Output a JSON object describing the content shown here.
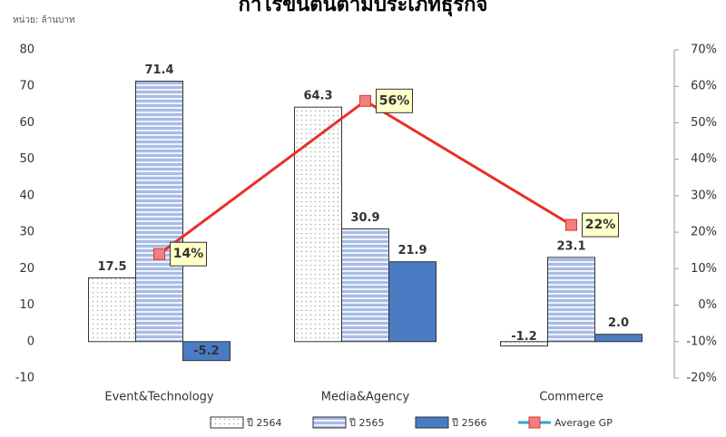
{
  "chart_data": {
    "type": "bar",
    "title": "กำไรขั้นต้นตามประเภทธุรกิจ",
    "unit_label": "หน่วย: ล้านบาท",
    "categories": [
      "Event&Technology",
      "Media&Agency",
      "Commerce"
    ],
    "series": [
      {
        "name": "ปี 2564",
        "color": "#ffffff",
        "pattern": "dots",
        "values": [
          17.5,
          64.3,
          -1.2
        ]
      },
      {
        "name": "ปี 2565",
        "color": "#a7bce6",
        "pattern": "stripes",
        "values": [
          71.4,
          30.9,
          23.1
        ]
      },
      {
        "name": "ปี 2566",
        "color": "#4a7cc4",
        "pattern": "solid",
        "values": [
          -5.2,
          21.9,
          2.0
        ],
        "value_labels": [
          "-5.2",
          "21.9",
          "2.0"
        ]
      },
      {
        "name": "Average GP",
        "type": "line",
        "axis": "y2",
        "color": "#e8302a",
        "legend_color": "#2aa7d8",
        "values": [
          14,
          56,
          22
        ],
        "value_labels": [
          "14%",
          "56%",
          "22%"
        ]
      }
    ],
    "ylim": [
      -10,
      80
    ],
    "yticks": [
      -10,
      0,
      10,
      20,
      30,
      40,
      50,
      60,
      70,
      80
    ],
    "y2lim": [
      -20,
      70
    ],
    "y2ticks": [
      {
        "value": -20,
        "label": "-20%"
      },
      {
        "value": -10,
        "label": "-10%"
      },
      {
        "value": 0,
        "label": "0%"
      },
      {
        "value": 10,
        "label": "10%"
      },
      {
        "value": 20,
        "label": "20%"
      },
      {
        "value": 30,
        "label": "30%"
      },
      {
        "value": 40,
        "label": "40%"
      },
      {
        "value": 50,
        "label": "50%"
      },
      {
        "value": 60,
        "label": "60%"
      },
      {
        "value": 70,
        "label": "70%"
      }
    ],
    "grid": false
  }
}
